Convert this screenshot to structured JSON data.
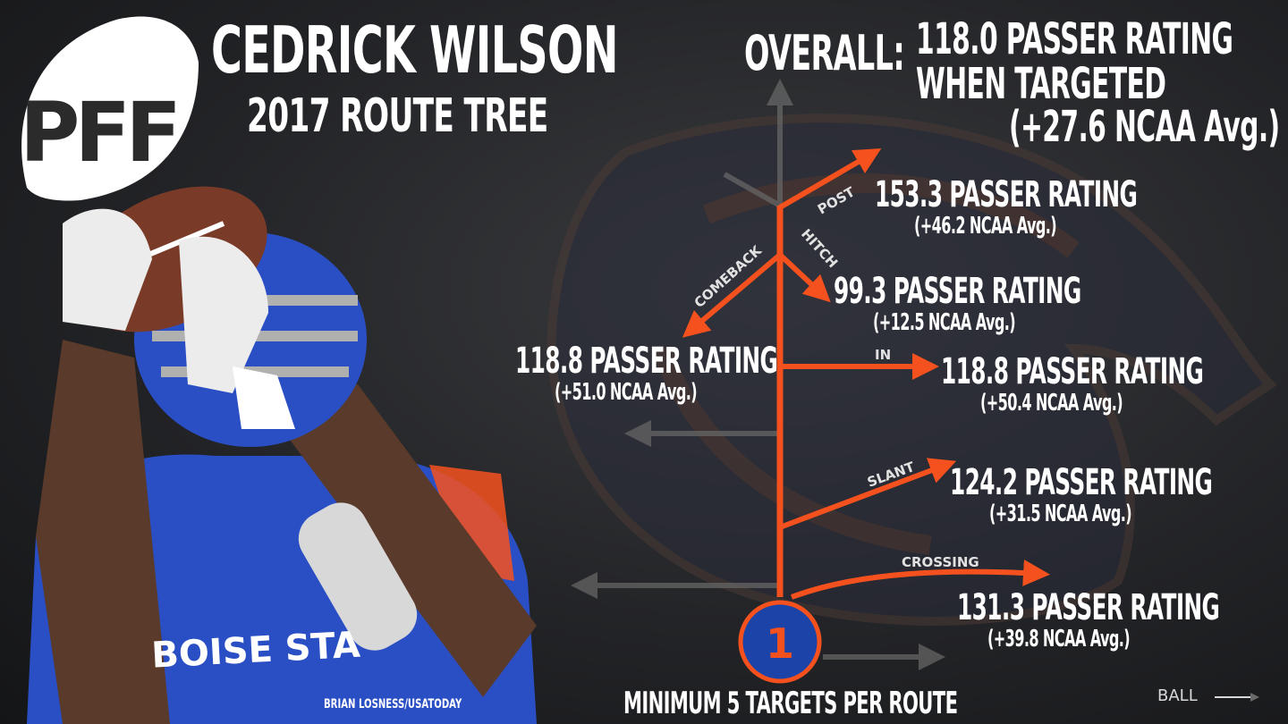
{
  "logo": {
    "text": "PFF"
  },
  "header": {
    "player_name": "CEDRICK WILSON",
    "subtitle": "2017 ROUTE TREE"
  },
  "overall": {
    "label": "OVERALL:",
    "line1": "118.0 PASSER RATING",
    "line2": "WHEN TARGETED",
    "line3": "(+27.6 NCAA Avg.)"
  },
  "routes": [
    {
      "name": "POST",
      "rating": "153.3 PASSER RATING",
      "vs_avg": "(+46.2 NCAA Avg.)"
    },
    {
      "name": "HITCH",
      "rating": "99.3 PASSER RATING",
      "vs_avg": "(+12.5 NCAA Avg.)"
    },
    {
      "name": "COMEBACK",
      "rating": "118.8 PASSER RATING",
      "vs_avg": "(+51.0 NCAA Avg.)"
    },
    {
      "name": "IN",
      "rating": "118.8 PASSER RATING",
      "vs_avg": "(+50.4 NCAA Avg.)"
    },
    {
      "name": "SLANT",
      "rating": "124.2 PASSER RATING",
      "vs_avg": "(+31.5 NCAA Avg.)"
    },
    {
      "name": "CROSSING",
      "rating": "131.3 PASSER RATING",
      "vs_avg": "(+39.8 NCAA Avg.)"
    }
  ],
  "player_marker": {
    "number": "1"
  },
  "player_photo": {
    "jersey_text": "BOISE STA"
  },
  "footer": {
    "note": "MINIMUM 5 TARGETS PER ROUTE",
    "photo_credit": "BRIAN LOSNESS/USATODAY",
    "ball_label": "BALL"
  },
  "colors": {
    "route_orange": "#f4511e",
    "marker_blue": "#1c44a8",
    "jersey_blue": "#2a4fc4"
  }
}
